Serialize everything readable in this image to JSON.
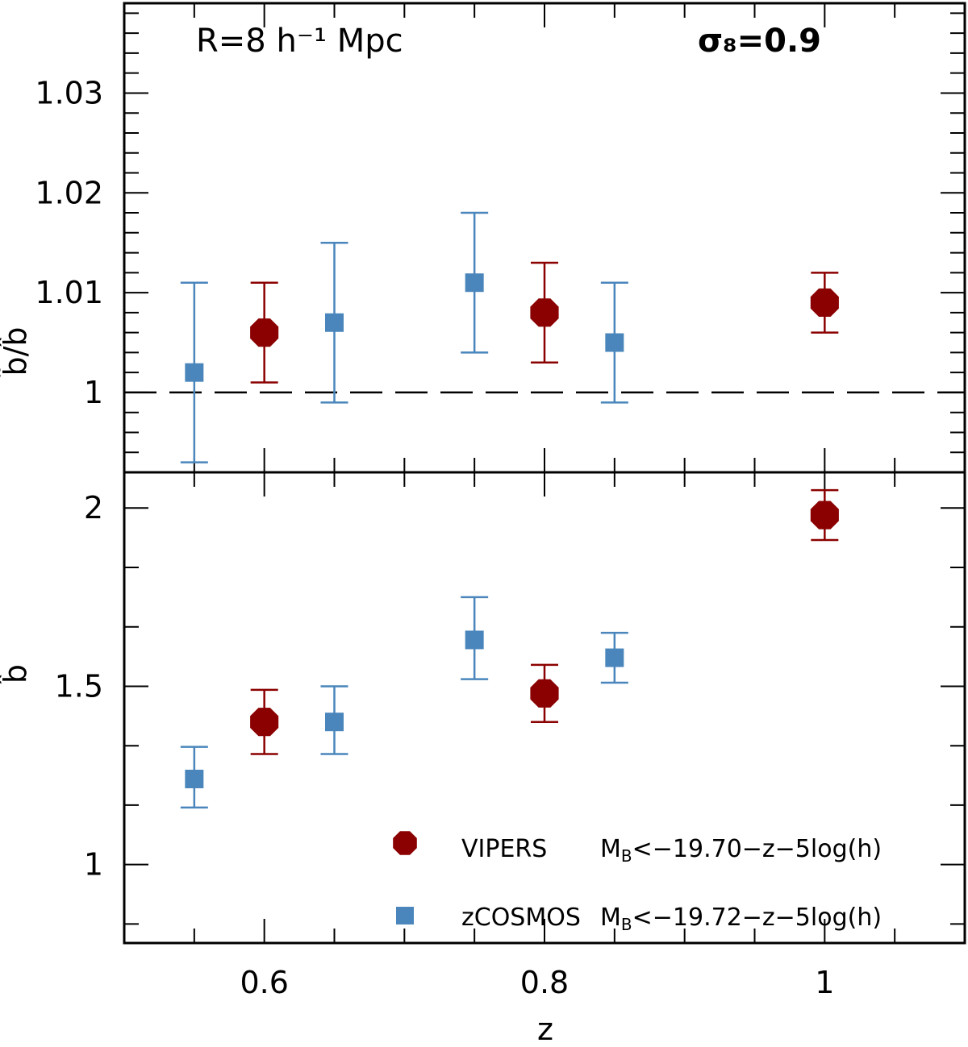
{
  "chart_data": [
    {
      "panel": "top",
      "type": "scatter",
      "ylabel": "b̃/b̂",
      "ylim": [
        0.992,
        1.039
      ],
      "xlim": [
        0.5,
        1.1
      ],
      "yticks": [
        1,
        1.01,
        1.02,
        1.03
      ],
      "ytick_labels": [
        "1",
        "1.01",
        "1.02",
        "1.03"
      ],
      "reference_line": {
        "y": 1,
        "style": "dashed"
      },
      "annotations": {
        "left": "R=8 h⁻¹ Mpc",
        "right": "σ₈=0.9"
      },
      "series": [
        {
          "name": "VIPERS",
          "color": "#8b0000",
          "marker": "circle",
          "x": [
            0.6,
            0.8,
            1.0
          ],
          "y": [
            1.006,
            1.008,
            1.009
          ],
          "yerr_low": [
            1.001,
            1.003,
            1.006
          ],
          "yerr_high": [
            1.011,
            1.013,
            1.012
          ]
        },
        {
          "name": "zCOSMOS",
          "color": "#4a86bc",
          "marker": "square",
          "x": [
            0.55,
            0.65,
            0.75,
            0.85
          ],
          "y": [
            1.002,
            1.007,
            1.011,
            1.005
          ],
          "yerr_low": [
            0.993,
            0.999,
            1.004,
            0.999
          ],
          "yerr_high": [
            1.011,
            1.015,
            1.018,
            1.011
          ]
        }
      ]
    },
    {
      "panel": "bottom",
      "type": "scatter",
      "xlabel": "z",
      "ylabel": "b̂",
      "ylim": [
        0.78,
        2.1
      ],
      "xlim": [
        0.5,
        1.1
      ],
      "yticks": [
        1,
        1.5,
        2
      ],
      "ytick_labels": [
        "1",
        "1.5",
        "2"
      ],
      "xticks": [
        0.6,
        0.8,
        1
      ],
      "xtick_labels": [
        "0.6",
        "0.8",
        "1"
      ],
      "series": [
        {
          "name": "VIPERS",
          "color": "#8b0000",
          "marker": "circle",
          "x": [
            0.6,
            0.8,
            1.0
          ],
          "y": [
            1.4,
            1.48,
            1.98
          ],
          "yerr_low": [
            1.31,
            1.4,
            1.91
          ],
          "yerr_high": [
            1.49,
            1.56,
            2.05
          ]
        },
        {
          "name": "zCOSMOS",
          "color": "#4a86bc",
          "marker": "square",
          "x": [
            0.55,
            0.65,
            0.75,
            0.85
          ],
          "y": [
            1.24,
            1.4,
            1.63,
            1.58
          ],
          "yerr_low": [
            1.16,
            1.31,
            1.52,
            1.51
          ],
          "yerr_high": [
            1.33,
            1.5,
            1.75,
            1.65
          ]
        }
      ],
      "legend": {
        "position": "bottom-right",
        "entries": [
          {
            "name": "VIPERS",
            "condition_prefix": "M",
            "condition_sub": "B",
            "condition_rest": "<−19.70−z−5log(h)"
          },
          {
            "name": "zCOSMOS",
            "condition_prefix": "M",
            "condition_sub": "B",
            "condition_rest": "<−19.72−z−5log(h)"
          }
        ]
      }
    }
  ]
}
